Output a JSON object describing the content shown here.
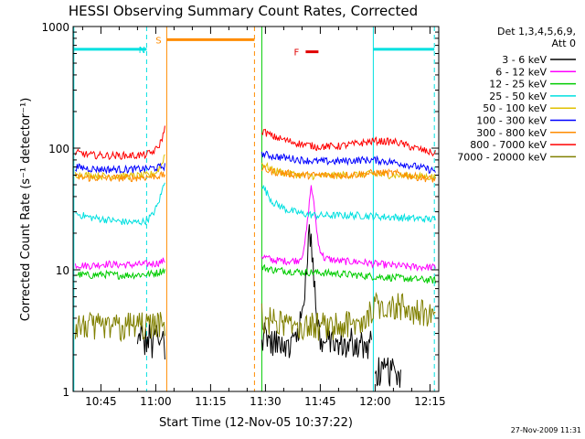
{
  "chart_data": {
    "type": "line",
    "title": "HESSI Observing Summary Count Rates, Corrected",
    "xlabel": "Start Time (12-Nov-05 10:37:22)",
    "ylabel": "Corrected Count Rate (s⁻¹ detector⁻¹)",
    "y_scale": "log",
    "ylim": [
      1,
      1000
    ],
    "xlim_min": [
      37.4,
      137.4
    ],
    "x_tick_labels": [
      "10:45",
      "11:00",
      "11:15",
      "11:30",
      "11:45",
      "12:00",
      "12:15"
    ],
    "x_tick_values_min": [
      45,
      60,
      75,
      90,
      105,
      120,
      135
    ],
    "y_tick_labels": [
      "1",
      "10",
      "100",
      "1000"
    ],
    "y_tick_values": [
      1,
      10,
      100,
      1000
    ],
    "legend_header": [
      "Det 1,3,4,5,6,9,",
      "Att 0"
    ],
    "legend_placement": "right",
    "timestamp": "27-Nov-2009 11:31",
    "markers": [
      {
        "label": "N",
        "color": "#00e0e0",
        "level": 650,
        "spans": [
          [
            37.4,
            57.5
          ],
          [
            119.5,
            136.2
          ]
        ]
      },
      {
        "label": "S",
        "color": "#ff8c00",
        "level": 780,
        "spans": [
          [
            63.0,
            87.0
          ]
        ]
      },
      {
        "label": "F",
        "color": "#e00000",
        "level": 620,
        "spans": [
          [
            101.0,
            104.5
          ]
        ]
      }
    ],
    "vertical_lines": [
      {
        "x": 37.6,
        "color": "#00e0e0",
        "style": "solid"
      },
      {
        "x": 57.5,
        "color": "#00e0e0",
        "style": "dashed"
      },
      {
        "x": 63.0,
        "color": "#ff8c00",
        "style": "solid"
      },
      {
        "x": 87.0,
        "color": "#ff8c00",
        "style": "dashed"
      },
      {
        "x": 89.0,
        "color": "#00cc00",
        "style": "solid"
      },
      {
        "x": 119.5,
        "color": "#00e0e0",
        "style": "solid"
      },
      {
        "x": 136.2,
        "color": "#00e0e0",
        "style": "dashed"
      }
    ],
    "series": [
      {
        "name": "3 - 6 keV",
        "color": "#000000",
        "style": "spiky",
        "segments": [
          {
            "x": [
              55,
              56,
              57,
              58,
              59,
              60,
              61,
              62,
              62.5
            ],
            "y": [
              2.5,
              3.5,
              2.5,
              3,
              2.5,
              3.2,
              2.5,
              3,
              2.5
            ]
          },
          {
            "x": [
              89,
              90,
              92,
              94,
              96,
              98,
              100,
              101,
              102,
              103,
              104,
              105,
              106,
              108,
              110,
              114,
              118,
              119
            ],
            "y": [
              2.8,
              3.2,
              2.5,
              2.8,
              2.5,
              3,
              4,
              10,
              24,
              12,
              5,
              3,
              2.5,
              2.8,
              2.5,
              2.7,
              2.5,
              2.6
            ]
          },
          {
            "x": [
              120,
              121,
              122,
              123,
              124,
              125,
              126,
              127
            ],
            "y": [
              1.4,
              1.6,
              1.4,
              1.7,
              1.5,
              1.6,
              1.4,
              1.5
            ]
          }
        ]
      },
      {
        "name": "6 - 12 keV",
        "color": "#ff00ff",
        "style": "noisy",
        "segments": [
          {
            "x": [
              38,
              42,
              46,
              50,
              54,
              58,
              60,
              61.5,
              62.5
            ],
            "y": [
              11,
              10.8,
              11.2,
              11,
              11,
              11.2,
              11.3,
              11.6,
              12
            ]
          },
          {
            "x": [
              89,
              92,
              96,
              99,
              100.5,
              101.5,
              102.5,
              103.5,
              104.5,
              106,
              110,
              116,
              120,
              126,
              130,
              136.5
            ],
            "y": [
              13,
              12,
              11.8,
              12,
              14,
              25,
              50,
              30,
              16,
              12.5,
              11.8,
              11.6,
              11.2,
              10.8,
              10.6,
              10.5
            ]
          }
        ]
      },
      {
        "name": "12 - 25 keV",
        "color": "#00cc00",
        "style": "noisy",
        "segments": [
          {
            "x": [
              38,
              42,
              46,
              50,
              54,
              58,
              60,
              62.5
            ],
            "y": [
              9.2,
              9.0,
              9.2,
              9.0,
              9.1,
              9.2,
              9.4,
              10
            ]
          },
          {
            "x": [
              89,
              92,
              96,
              100,
              104,
              110,
              116,
              120,
              126,
              130,
              136.5
            ],
            "y": [
              10.5,
              10,
              9.8,
              9.6,
              9.5,
              9.3,
              9.0,
              8.8,
              8.6,
              8.4,
              8.2
            ]
          }
        ]
      },
      {
        "name": "25 - 50 keV",
        "color": "#00e0e0",
        "style": "noisy",
        "segments": [
          {
            "x": [
              38,
              42,
              46,
              50,
              54,
              57,
              59,
              60.5,
              61.5,
              62.5
            ],
            "y": [
              29,
              27,
              26,
              25,
              24.5,
              25,
              28,
              34,
              42,
              55
            ]
          },
          {
            "x": [
              89,
              92,
              96,
              100,
              104,
              110,
              116,
              120,
              126,
              130,
              136.5
            ],
            "y": [
              50,
              36,
              31,
              29,
              28,
              28,
              28,
              27.5,
              27,
              26.5,
              26
            ]
          }
        ]
      },
      {
        "name": "50 - 100 keV",
        "color": "#e0c000",
        "style": "noisy",
        "segments": [
          {
            "x": [
              38,
              42,
              46,
              50,
              54,
              58,
              60,
              61.5,
              62.5
            ],
            "y": [
              61,
              60,
              59,
              59,
              59,
              60,
              63,
              72,
              90
            ]
          },
          {
            "x": [
              89,
              92,
              96,
              100,
              104,
              110,
              116,
              120,
              126,
              130,
              136.5
            ],
            "y": [
              75,
              66,
              62,
              60,
              59,
              60,
              61,
              61,
              60,
              59,
              58
            ]
          }
        ]
      },
      {
        "name": "100 - 300 keV",
        "color": "#0000ff",
        "style": "noisy",
        "segments": [
          {
            "x": [
              38,
              42,
              46,
              50,
              54,
              58,
              60,
              62.5
            ],
            "y": [
              70,
              68,
              67,
              67,
              67,
              68,
              69,
              71
            ]
          },
          {
            "x": [
              89,
              92,
              96,
              100,
              104,
              110,
              116,
              120,
              126,
              130,
              136.5
            ],
            "y": [
              90,
              86,
              83,
              80,
              78,
              78,
              80,
              80,
              76,
              72,
              65
            ]
          }
        ]
      },
      {
        "name": "300 - 800 keV",
        "color": "#ff8c00",
        "style": "noisy",
        "segments": [
          {
            "x": [
              38,
              42,
              46,
              50,
              54,
              58,
              60,
              62.5
            ],
            "y": [
              58,
              57,
              57,
              57,
              57,
              58,
              59,
              60
            ]
          },
          {
            "x": [
              89,
              92,
              96,
              100,
              104,
              110,
              116,
              120,
              126,
              130,
              136.5
            ],
            "y": [
              68,
              64,
              62,
              60,
              60,
              60,
              61,
              63,
              62,
              59,
              55
            ]
          }
        ]
      },
      {
        "name": "800 - 7000 keV",
        "color": "#ff0000",
        "style": "noisy",
        "segments": [
          {
            "x": [
              38,
              42,
              46,
              50,
              54,
              57,
              59,
              60.5,
              61.5,
              62.5
            ],
            "y": [
              92,
              88,
              87,
              87,
              87,
              88,
              92,
              100,
              115,
              145
            ]
          },
          {
            "x": [
              89,
              92,
              96,
              100,
              104,
              110,
              116,
              120,
              126,
              130,
              136.5
            ],
            "y": [
              140,
              125,
              115,
              108,
              103,
              104,
              110,
              115,
              112,
              102,
              90
            ]
          }
        ]
      },
      {
        "name": "7000 - 20000 keV",
        "color": "#808000",
        "style": "spiky",
        "segments": [
          {
            "x": [
              38,
              42,
              46,
              50,
              54,
              58,
              60,
              62.5
            ],
            "y": [
              3.5,
              3.7,
              3.4,
              3.6,
              3.5,
              3.6,
              3.5,
              3.6
            ]
          },
          {
            "x": [
              89,
              92,
              96,
              100,
              104,
              110,
              116,
              120,
              124,
              128,
              132,
              136.5
            ],
            "y": [
              4.2,
              3.8,
              3.7,
              3.6,
              3.5,
              3.6,
              3.8,
              5.5,
              5.3,
              5.0,
              4.8,
              4.5
            ]
          }
        ]
      }
    ]
  }
}
